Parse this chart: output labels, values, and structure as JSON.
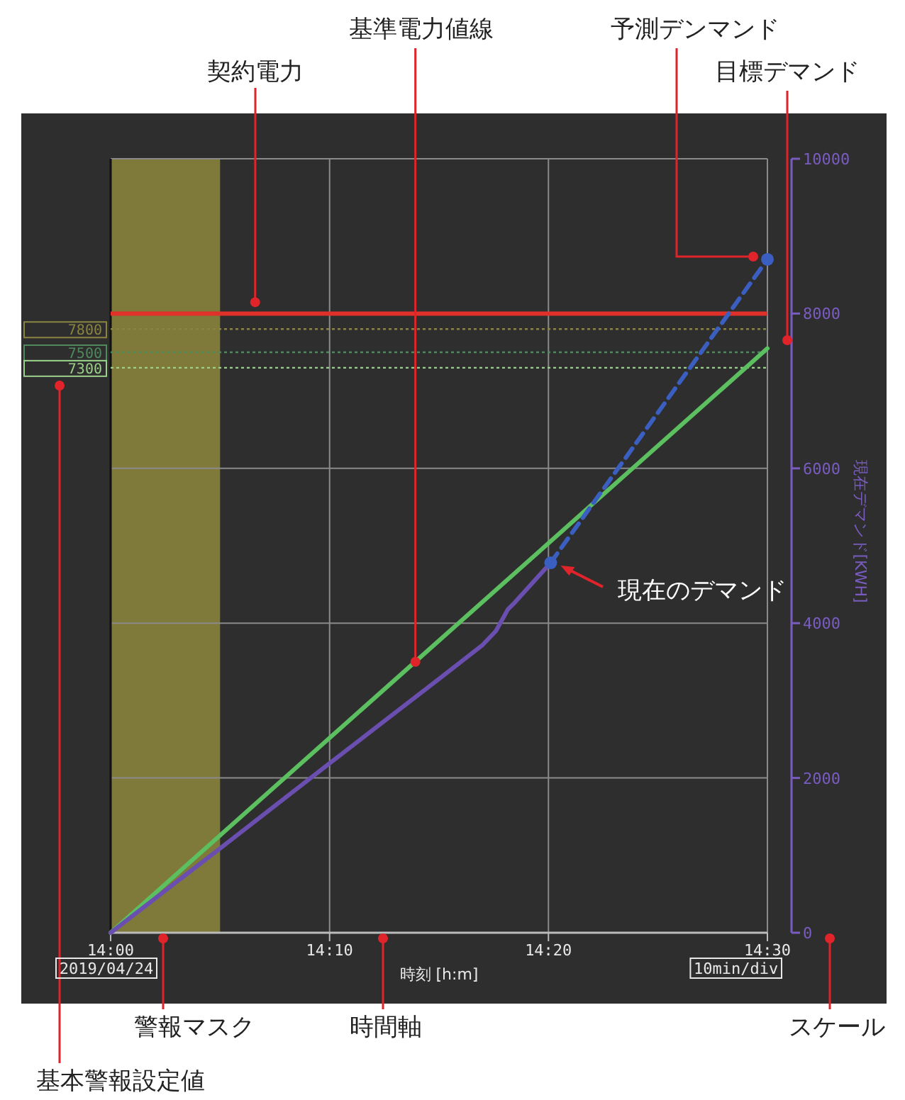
{
  "chart_data": {
    "type": "line",
    "xlabel": "時刻 [h:m]",
    "ylabel": "現在デマンド[KWH]",
    "xlim": [
      14,
      14.5
    ],
    "xticks": [
      {
        "value": 14,
        "label": "14:00"
      },
      {
        "value": 14.1667,
        "label": "14:10"
      },
      {
        "value": 14.3333,
        "label": "14:20"
      },
      {
        "value": 14.5,
        "label": "14:30"
      }
    ],
    "ylim": [
      0,
      10000
    ],
    "yticks": [
      0,
      2000,
      4000,
      6000,
      8000,
      10000
    ],
    "grid": true,
    "series": [
      {
        "color": "#5cbf60",
        "x": [
          14,
          14.5
        ],
        "values": [
          0,
          7550
        ],
        "line_style": "solid",
        "marker": "none"
      },
      {
        "color": "#6a4fb0",
        "x": [
          14,
          14.0833,
          14.1667,
          14.25,
          14.2833,
          14.2933,
          14.3025,
          14.3078,
          14.335
        ],
        "values": [
          0,
          1090,
          2190,
          3280,
          3720,
          3900,
          4180,
          4270,
          4780
        ],
        "line_style": "solid",
        "marker": "none"
      },
      {
        "color": "#3a5fc0",
        "x": [
          14.335,
          14.5
        ],
        "values": [
          4780,
          8700
        ],
        "line_style": "dashed",
        "marker": "circle"
      }
    ],
    "ref_lines": [
      {
        "axis": "y",
        "value": 8000,
        "color": "#e0302a",
        "line_style": "solid"
      },
      {
        "axis": "y",
        "value": 7800,
        "label": "7800",
        "color": "#8a8440",
        "line_style": "dotted"
      },
      {
        "axis": "y",
        "value": 7500,
        "label": "7500",
        "color": "#4f8a5c",
        "line_style": "dotted"
      },
      {
        "axis": "y",
        "value": 7300,
        "label": "7300",
        "color": "#9ad08a",
        "line_style": "dotted"
      }
    ],
    "bands": [
      {
        "axis": "x",
        "from": 14,
        "to": 14.0833,
        "color": "#7f7a3a"
      }
    ],
    "annotations": [
      {
        "text": "契約電力",
        "x": 14.11,
        "y": 8000
      },
      {
        "text": "基準電力値線",
        "x": 14.232,
        "y": 3500
      },
      "予測デンマンド",
      "目標デマンド",
      {
        "text": "現在のデマンド",
        "x": 14.335,
        "y": 4780
      },
      "警報マスク",
      "時間軸",
      "スケール",
      "基本警報設定値",
      "2019/04/24",
      "10min/div"
    ]
  }
}
